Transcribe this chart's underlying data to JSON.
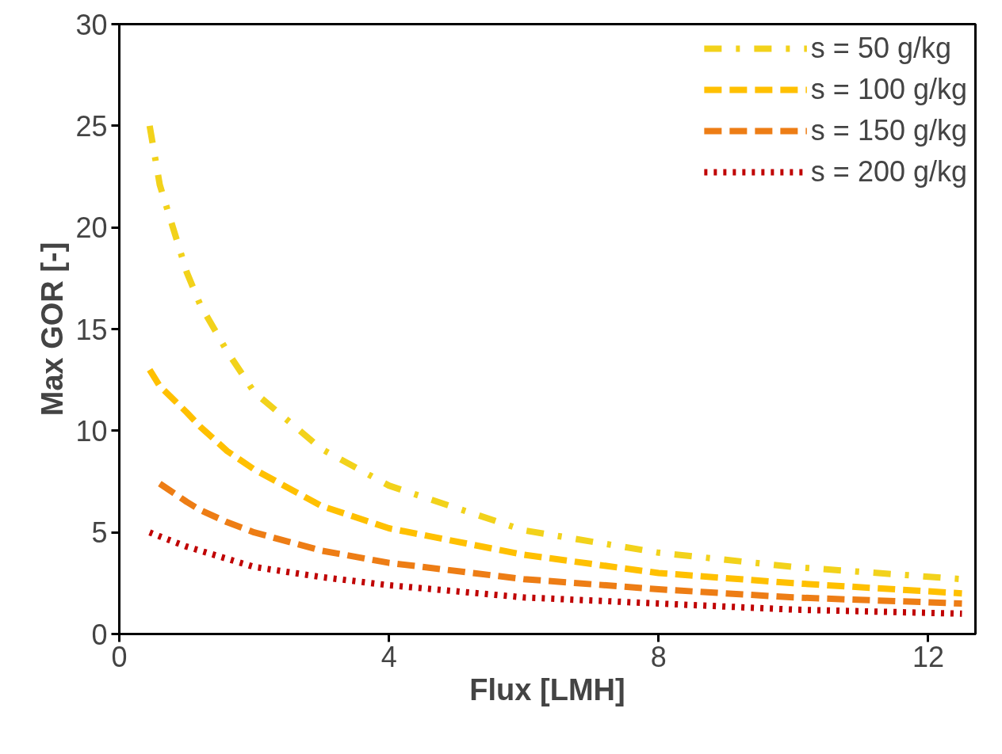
{
  "chart_data": {
    "type": "line",
    "xlabel": "Flux [LMH]",
    "ylabel": "Max GOR [-]",
    "xlim": [
      0,
      12.7
    ],
    "ylim": [
      0,
      30
    ],
    "xticks": [
      0,
      4,
      8,
      12
    ],
    "yticks": [
      0,
      5,
      10,
      15,
      20,
      25,
      30
    ],
    "grid": false,
    "legend": "top right",
    "x": [
      0.45,
      0.6,
      1,
      1.2,
      1.6,
      2,
      3,
      4,
      6,
      8,
      10,
      12.5
    ],
    "series": [
      {
        "name": "s = 50 g/kg",
        "color": "#f2d21b",
        "line_style": "dashdot",
        "values": [
          25,
          22.1,
          17.8,
          16.2,
          13.9,
          11.9,
          9.1,
          7.3,
          5.1,
          4.0,
          3.3,
          2.7
        ]
      },
      {
        "name": "s = 100 g/kg",
        "color": "#ffc000",
        "line_style": "dashed",
        "values": [
          13.0,
          12.2,
          10.9,
          10.2,
          9.0,
          8.1,
          6.3,
          5.2,
          3.9,
          3.0,
          2.5,
          2.0
        ]
      },
      {
        "name": "s = 150 g/kg",
        "color": "#ed7d15",
        "line_style": "dashed",
        "values": [
          null,
          7.4,
          6.5,
          6.1,
          5.5,
          5.0,
          4.1,
          3.5,
          2.7,
          2.2,
          1.8,
          1.5
        ]
      },
      {
        "name": "s = 200 g/kg",
        "color": "#c00000",
        "line_style": "dotted",
        "values": [
          5.0,
          4.8,
          4.3,
          4.1,
          3.7,
          3.3,
          2.8,
          2.4,
          1.8,
          1.5,
          1.2,
          1.0
        ]
      }
    ]
  }
}
